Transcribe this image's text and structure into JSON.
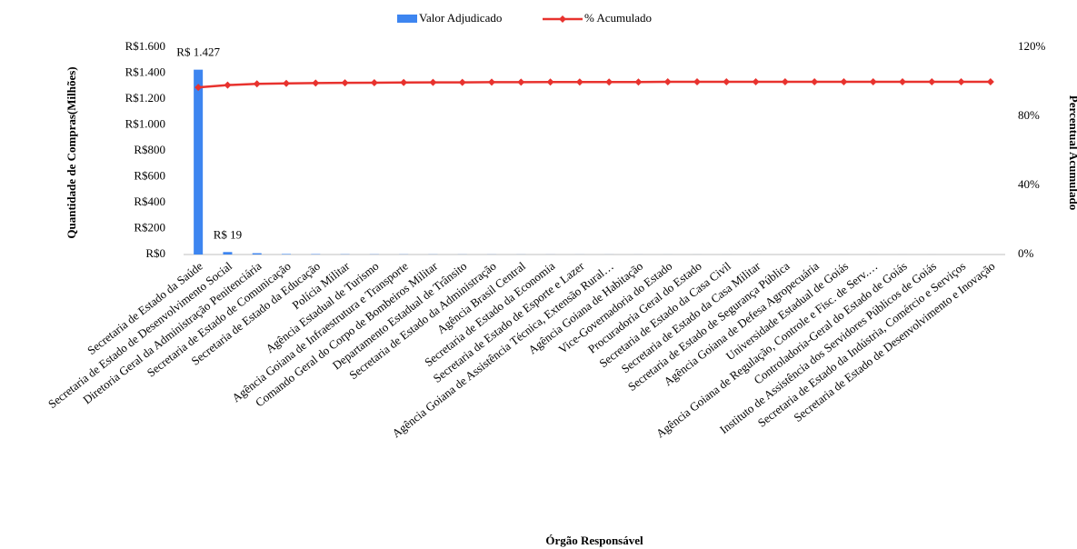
{
  "chart_data": {
    "type": "bar",
    "categories": [
      "Secretaria de Estado da Saúde",
      "Secretaria de Estado de Desenvolvimento Social",
      "Diretoria Geral da Administração Penitenciária",
      "Secretaria de Estado de Comunicação",
      "Secretaria de Estado da Educação",
      "Polícia Militar",
      "Agência Estadual de Turismo",
      "Agência Goiana de Infraestrutura e Transporte",
      "Comando Geral do Corpo de Bombeiros Militar",
      "Departamento Estadual de Trânsito",
      "Secretaria de Estado da Administração",
      "Agência Brasil Central",
      "Secretaria de Estado da Economia",
      "Secretaria de Estado de Esporte e Lazer",
      "Agência Goiana de Assistência Técnica, Extensão Rural…",
      "Agência Goiana de Habitação",
      "Vice-Governadoria do Estado",
      "Procuradoria Geral do Estado",
      "Secretaria de Estado da Casa Civil",
      "Secretaria de Estado da Casa Militar",
      "Secretaria de Estado de Segurança Pública",
      "Agência Goiana de Defesa Agropecuária",
      "Universidade Estadual de Goiás",
      "Agência Goiana de Regulação, Controle e Fisc. de Serv.…",
      "Controladoria-Geral do Estado de Goiás",
      "Instituto de Assistência dos Servidores Públicos de Goiás",
      "Secretaria de Estado da Indústria, Comércio e Serviços",
      "Secretaria de Estado de Desenvolvimento e Inovação"
    ],
    "series": [
      {
        "name": "Valor Adjudicado",
        "type": "bar",
        "color": "#3d85f0",
        "values": [
          1427,
          19,
          10,
          4,
          3,
          2,
          1.5,
          1.2,
          1,
          0.8,
          0.7,
          0.6,
          0.5,
          0.4,
          0.35,
          0.3,
          0.25,
          0.2,
          0.18,
          0.15,
          0.12,
          0.1,
          0.08,
          0.06,
          0.05,
          0.04,
          0.02,
          0.01
        ],
        "value_labels": [
          "R$ 1.427",
          "R$ 19",
          null,
          null,
          null,
          null,
          null,
          null,
          null,
          null,
          null,
          null,
          null,
          null,
          null,
          null,
          null,
          null,
          null,
          null,
          null,
          null,
          null,
          null,
          null,
          null,
          null,
          null
        ]
      },
      {
        "name": "% Acumulado",
        "type": "line",
        "axis": "y2",
        "color": "#e8322e",
        "values": [
          96.8,
          98.1,
          98.8,
          99.1,
          99.3,
          99.4,
          99.5,
          99.6,
          99.7,
          99.7,
          99.8,
          99.8,
          99.9,
          99.9,
          99.9,
          99.9,
          100,
          100,
          100,
          100,
          100,
          100,
          100,
          100,
          100,
          100,
          100,
          100
        ]
      }
    ],
    "ylabel": "Quantidade de Compras(Milhões)",
    "y2label": "Percentual Acumulado",
    "xlabel": "Órgão Responsável",
    "ylim": [
      0,
      1600
    ],
    "yticks": [
      {
        "value": 0,
        "label": "R$0"
      },
      {
        "value": 200,
        "label": "R$200"
      },
      {
        "value": 400,
        "label": "R$400"
      },
      {
        "value": 600,
        "label": "R$600"
      },
      {
        "value": 800,
        "label": "R$800"
      },
      {
        "value": 1000,
        "label": "R$1.000"
      },
      {
        "value": 1200,
        "label": "R$1.200"
      },
      {
        "value": 1400,
        "label": "R$1.400"
      },
      {
        "value": 1600,
        "label": "R$1.600"
      }
    ],
    "y2lim": [
      0,
      120
    ],
    "y2ticks": [
      {
        "value": 0,
        "label": "0%"
      },
      {
        "value": 40,
        "label": "40%"
      },
      {
        "value": 80,
        "label": "80%"
      },
      {
        "value": 120,
        "label": "120%"
      }
    ],
    "legend": "top",
    "grid": false
  }
}
